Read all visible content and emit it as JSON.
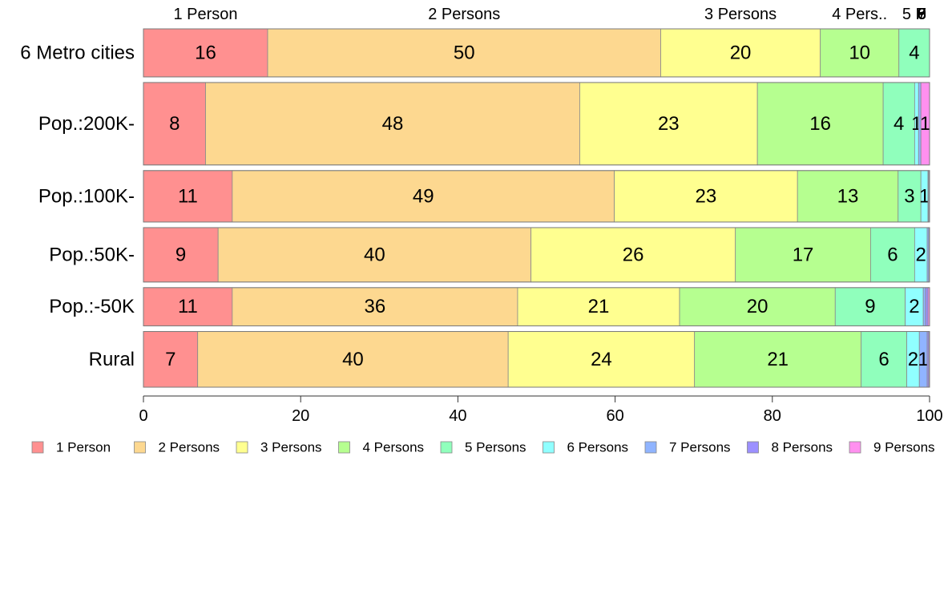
{
  "chart_data": {
    "type": "bar",
    "orientation": "horizontal",
    "stacked": true,
    "xlim": [
      0,
      100
    ],
    "xticks": [
      "0",
      "20",
      "40",
      "60",
      "80",
      "100"
    ],
    "grid": false,
    "legend_position": "bottom",
    "top_labels": [
      "1 Person",
      "2 Persons",
      "3 Persons",
      "4 Pers..",
      "5 P",
      "6",
      "7",
      "8",
      "9"
    ],
    "categories": [
      "6 Metro cities",
      "Pop.:200K-",
      "Pop.:100K-",
      "Pop.:50K-",
      "Pop.:-50K",
      "Rural"
    ],
    "category_shares": [
      0.113,
      0.194,
      0.121,
      0.128,
      0.09,
      0.131
    ],
    "series": [
      {
        "name": "1 Person",
        "color": "#ff9090",
        "values": [
          15.8,
          7.9,
          11.3,
          9.5,
          11.3,
          6.9
        ],
        "labels": [
          "16",
          "8",
          "11",
          "9",
          "11",
          "7"
        ]
      },
      {
        "name": "2 Persons",
        "color": "#fdd890",
        "values": [
          50.0,
          47.6,
          48.6,
          39.8,
          36.3,
          39.5
        ],
        "labels": [
          "50",
          "48",
          "49",
          "40",
          "36",
          "40"
        ]
      },
      {
        "name": "3 Persons",
        "color": "#ffff90",
        "values": [
          20.3,
          22.6,
          23.3,
          26.0,
          20.6,
          23.7
        ],
        "labels": [
          "20",
          "23",
          "23",
          "26",
          "21",
          "24"
        ]
      },
      {
        "name": "4 Persons",
        "color": "#b6ff90",
        "values": [
          10.0,
          16.0,
          12.8,
          17.2,
          19.8,
          21.2
        ],
        "labels": [
          "10",
          "16",
          "13",
          "17",
          "20",
          "21"
        ]
      },
      {
        "name": "5 Persons",
        "color": "#90ffbc",
        "values": [
          3.9,
          4.0,
          2.9,
          5.6,
          8.9,
          5.8
        ],
        "labels": [
          "4",
          "4",
          "3",
          "6",
          "9",
          "6"
        ]
      },
      {
        "name": "6 Persons",
        "color": "#90ffff",
        "values": [
          0.0,
          0.5,
          0.9,
          1.6,
          2.3,
          1.6
        ],
        "labels": [
          "",
          "1",
          "1",
          "2",
          "2",
          "2"
        ]
      },
      {
        "name": "7 Persons",
        "color": "#90b4ff",
        "values": [
          0.0,
          0.3,
          0.1,
          0.2,
          0.3,
          1.0
        ],
        "labels": [
          "",
          "",
          "",
          "",
          "",
          "1"
        ]
      },
      {
        "name": "8 Persons",
        "color": "#9c90ff",
        "values": [
          0.0,
          0.0,
          0.1,
          0.1,
          0.3,
          0.2
        ],
        "labels": [
          "",
          "",
          "",
          "",
          "",
          ""
        ]
      },
      {
        "name": "9 Persons",
        "color": "#ff90ef",
        "values": [
          0.0,
          1.1,
          0.0,
          0.0,
          0.2,
          0.1
        ],
        "labels": [
          "",
          "1",
          "",
          "",
          "",
          ""
        ]
      }
    ]
  }
}
